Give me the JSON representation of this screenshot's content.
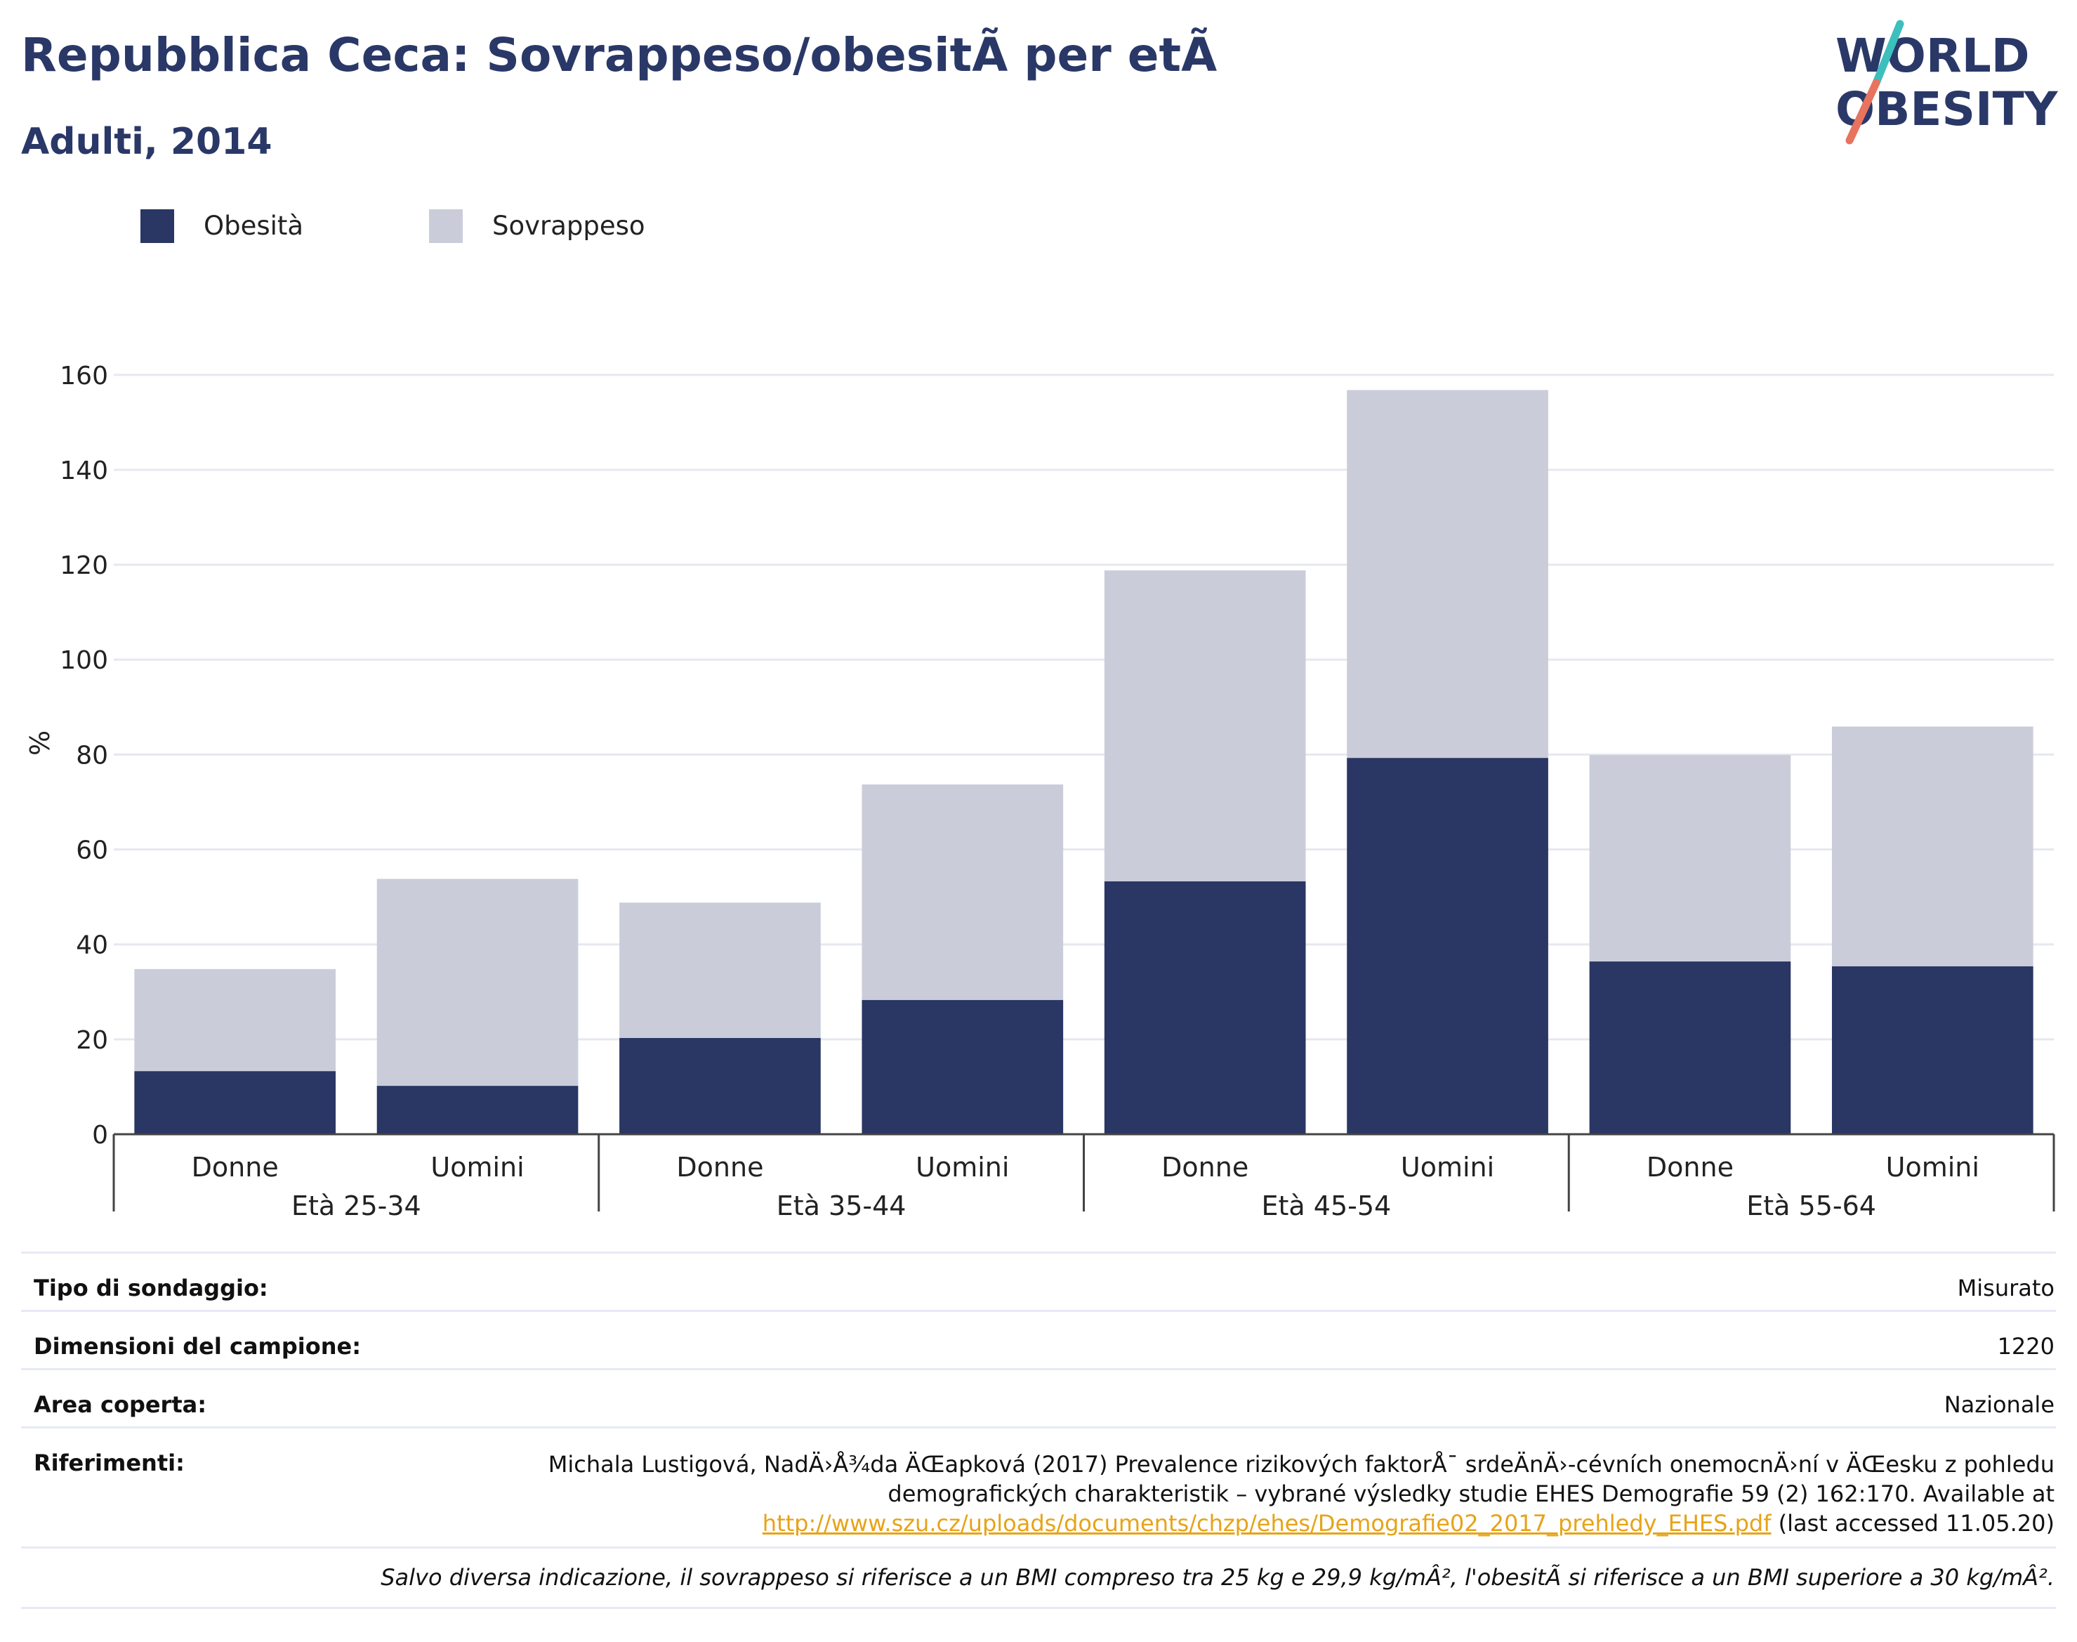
{
  "header": {
    "title": "Repubblica Ceca: Sovrappeso/obesitÃ  per etÃ",
    "subtitle": "Adulti, 2014"
  },
  "logo": {
    "line1": "WORLD",
    "line2": "OBESITY"
  },
  "colors": {
    "obesity": "#2a3663",
    "overweight": "#cacdd9",
    "title": "#2a3868",
    "link": "#e7a317",
    "logo_slash_teal": "#3cbfbd",
    "logo_slash_coral": "#e8735e"
  },
  "chart_data": {
    "type": "bar",
    "stacked": true,
    "title": "Repubblica Ceca: Sovrappeso/obesitÃ  per etÃ",
    "subtitle": "Adulti, 2014",
    "ylabel": "%",
    "xlabel": "",
    "ylim": [
      0,
      165
    ],
    "yticks": [
      0,
      20,
      40,
      60,
      80,
      100,
      120,
      140,
      160
    ],
    "grid": true,
    "legend_position": "top-left",
    "groups": [
      "Età 25-34",
      "Età 35-44",
      "Età 45-54",
      "Età 55-64"
    ],
    "categories": [
      "Donne",
      "Uomini",
      "Donne",
      "Uomini",
      "Donne",
      "Uomini",
      "Donne",
      "Uomini"
    ],
    "series": [
      {
        "name": "Obesità",
        "values": [
          13.3,
          10.2,
          20.3,
          28.3,
          53.3,
          79.3,
          36.4,
          35.4
        ]
      },
      {
        "name": "Sovrappeso",
        "values": [
          21.5,
          43.6,
          28.5,
          45.4,
          65.5,
          77.5,
          43.5,
          50.5
        ]
      }
    ]
  },
  "footer": {
    "survey_type_label": "Tipo di sondaggio:",
    "survey_type_value": "Misurato",
    "sample_size_label": "Dimensioni del campione:",
    "sample_size_value": "1220",
    "area_label": "Area coperta:",
    "area_value": "Nazionale",
    "references_label": "Riferimenti:",
    "references_line1": "Michala Lustigová, NadÄ›Å¾da ÄŒapková (2017) Prevalence rizikových faktorÅ¯ srdeÄnÄ›-cévních onemocnÄ›ní v ÄŒesku z pohledu",
    "references_line2": "demografických charakteristik – vybrané výsledky studie EHES Demografie 59 (2) 162:170. Available at",
    "references_link": "http://www.szu.cz/uploads/documents/chzp/ehes/Demografie02_2017_prehledy_EHES.pdf",
    "references_accessed": " (last accessed 11.05.20)",
    "note": "Salvo diversa indicazione, il sovrappeso si riferisce a un BMI compreso tra 25 kg e 29,9 kg/mÂ², l'obesitÃ  si riferisce a un BMI superiore a 30 kg/mÂ²."
  }
}
